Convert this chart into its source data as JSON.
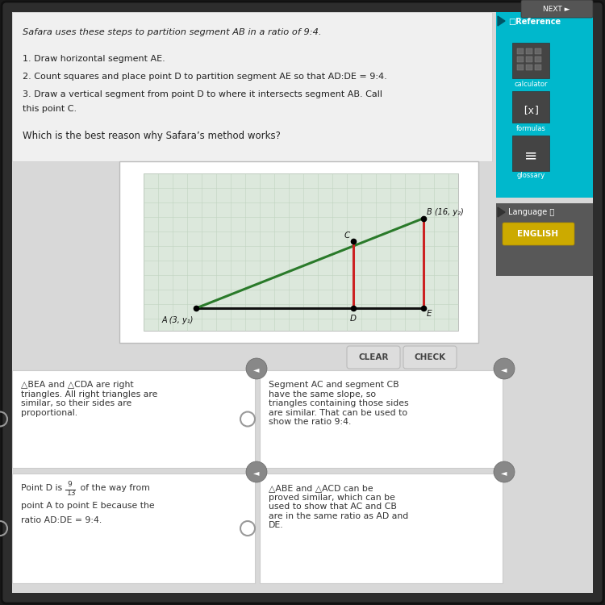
{
  "title_text": "Safara uses these steps to partition segment AB in a ratio of 9:4.",
  "step1": "1. Draw horizontal segment AE.",
  "step2": "2. Count squares and place point D to partition segment AE so that AD:DE = 9:4.",
  "step3": "3. Draw a vertical segment from point D to where it intersects segment AB. Call",
  "step3b": "this point C.",
  "question": "Which is the best reason why Safara’s method works?",
  "answer1": "△BEA and △CDA are right\ntriangles. All right triangles are\nsimilar, so their sides are\nproportional.",
  "answer2": "Segment AC and segment CB\nhave the same slope, so\ntriangles containing those sides\nare similar. That can be used to\nshow the ratio 9:4.",
  "answer3_line1": "Point D is ",
  "answer3_frac": "9/13",
  "answer3_line2": " of the way from",
  "answer3_line3": "point A to point E because the",
  "answer3_line4": "ratio AD:DE = 9:4.",
  "answer4": "△ABE and △ACD can be\nproved similar, which can be\nused to show that AC and CB\nare in the same ratio as AD and\nDE.",
  "bg_outer": "#1a1a1a",
  "bg_content": "#d8d8d8",
  "bg_top_panel": "#f0f0f0",
  "bg_sidebar_teal": "#00b8cc",
  "bg_sidebar_gray": "#606060",
  "bg_lang_btn": "#ccaa00",
  "bg_white": "#ffffff",
  "bg_grid": "#dce8dc",
  "color_dark": "#222222",
  "color_teal_dark": "#006677",
  "grid_line_color": "#c0d4c0",
  "green_line": "#2a7a2a",
  "red_line": "#cc2222",
  "black_line": "#111111"
}
